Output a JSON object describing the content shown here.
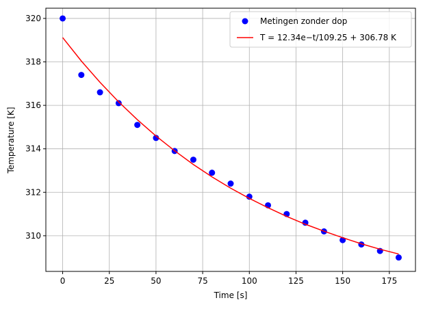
{
  "chart_data": {
    "type": "scatter",
    "xlabel": "Time [s]",
    "ylabel": "Temperature [K]",
    "xlim": [
      -9,
      189
    ],
    "ylim": [
      308.36,
      320.47
    ],
    "xticks": [
      0,
      25,
      50,
      75,
      100,
      125,
      150,
      175
    ],
    "yticks": [
      310,
      312,
      314,
      316,
      318,
      320
    ],
    "grid": true,
    "legend": "upper right",
    "series": [
      {
        "name": "Metingen zonder dop",
        "color": "#0000ff",
        "mode": "markers",
        "x": [
          0,
          10,
          20,
          30,
          40,
          50,
          60,
          70,
          80,
          90,
          100,
          110,
          120,
          130,
          140,
          150,
          160,
          170,
          180
        ],
        "values": [
          320,
          317.4,
          316.6,
          316.1,
          315.1,
          314.5,
          313.9,
          313.5,
          312.9,
          312.4,
          311.8,
          311.4,
          311.0,
          310.6,
          310.2,
          309.8,
          309.6,
          309.3,
          309.0
        ]
      },
      {
        "name": "T = 12.34e−t/109.25 + 306.78 K",
        "color": "#ff0000",
        "mode": "line",
        "x": [
          0,
          10,
          20,
          30,
          40,
          50,
          60,
          70,
          80,
          90,
          100,
          110,
          120,
          130,
          140,
          150,
          160,
          170,
          180
        ],
        "values": [
          319.12,
          318.04,
          317.06,
          316.16,
          315.34,
          314.59,
          313.91,
          313.28,
          312.71,
          312.19,
          311.72,
          311.29,
          310.89,
          310.53,
          310.21,
          309.91,
          309.63,
          309.38,
          309.16
        ]
      }
    ]
  }
}
